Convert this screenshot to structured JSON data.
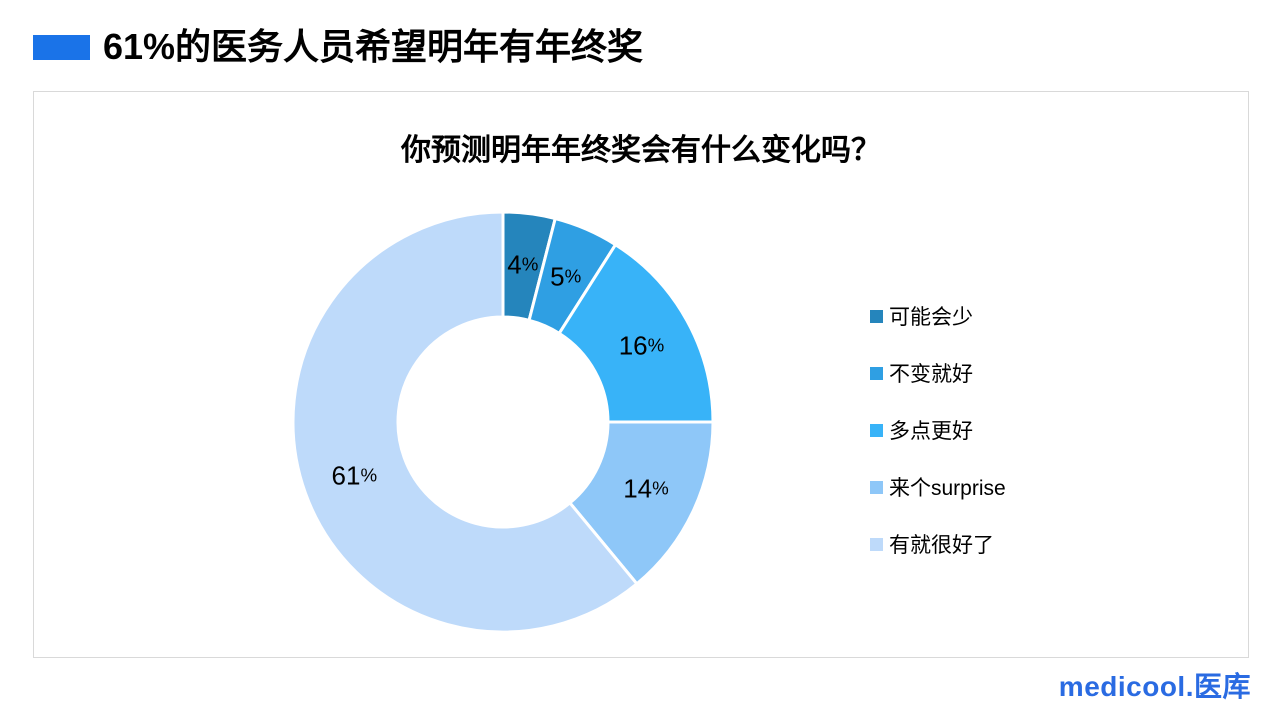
{
  "header": {
    "title": "61%的医务人员希望明年有年终奖",
    "bullet_color": "#1A73E8"
  },
  "chart_data": {
    "type": "pie",
    "subtype": "donut",
    "title": "你预测明年年终奖会有什么变化吗？",
    "unit": "%",
    "categories": [
      "可能会少",
      "不变就好",
      "多点更好",
      "来个surprise",
      "有就很好了"
    ],
    "values": [
      4,
      5,
      16,
      14,
      61
    ],
    "labels": [
      "4%",
      "5%",
      "16%",
      "14%",
      "61%"
    ],
    "colors": [
      "#2585BC",
      "#2F9FE3",
      "#38B3F8",
      "#8EC7F8",
      "#BEDAFA"
    ],
    "start_angle_deg": 0,
    "direction": "clockwise",
    "inner_radius_ratio": 0.5,
    "legend_position": "right",
    "slice_border_color": "#FFFFFF"
  },
  "logo": {
    "text": "medicool.医库",
    "color": "#2A6BE2"
  }
}
